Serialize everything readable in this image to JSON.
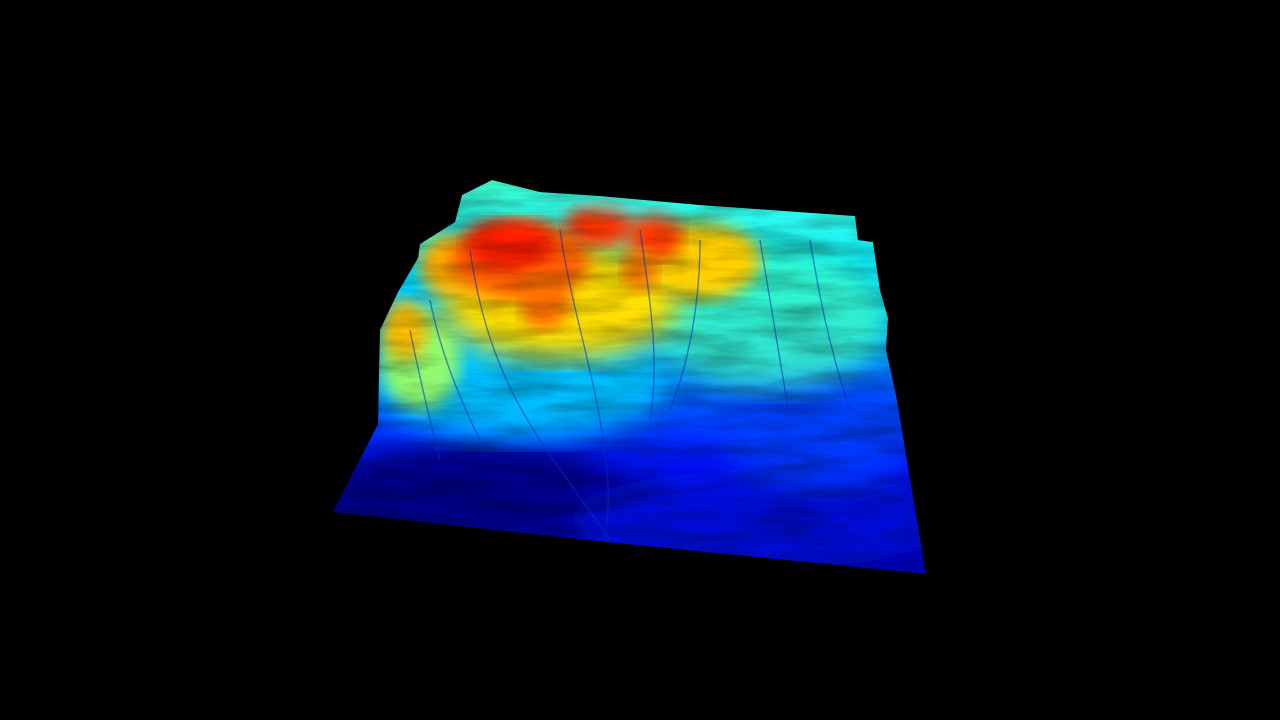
{
  "scene": {
    "background_color": "#000000",
    "subject": "terrain-heightmap",
    "colormap": [
      "#00007f",
      "#0000ff",
      "#0080ff",
      "#00ffff",
      "#80ff80",
      "#ffff00",
      "#ff8000",
      "#ff0000",
      "#800000"
    ]
  }
}
